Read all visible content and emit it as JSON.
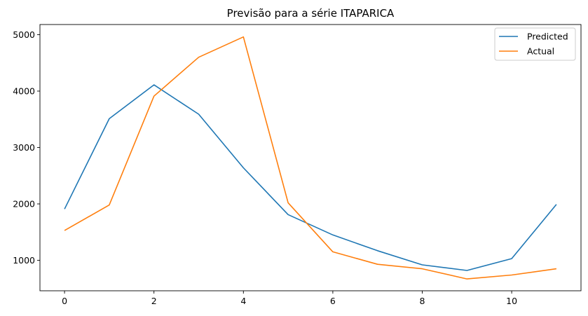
{
  "chart_data": {
    "type": "line",
    "title": "Previsão para a série ITAPARICA",
    "xlabel": "",
    "ylabel": "",
    "x": [
      0,
      1,
      2,
      3,
      4,
      5,
      6,
      7,
      8,
      9,
      10,
      11
    ],
    "xlim": [
      -0.55,
      11.55
    ],
    "ylim": [
      460,
      5180
    ],
    "x_ticks": [
      0,
      2,
      4,
      6,
      8,
      10
    ],
    "y_ticks": [
      1000,
      2000,
      3000,
      4000,
      5000
    ],
    "grid": false,
    "legend_position": "top-right",
    "series": [
      {
        "name": "Predicted",
        "color": "#1f77b4",
        "values": [
          1910,
          3510,
          4110,
          3590,
          2640,
          1810,
          1450,
          1170,
          920,
          820,
          1030,
          1990
        ]
      },
      {
        "name": "Actual",
        "color": "#ff7f0e",
        "values": [
          1530,
          1980,
          3910,
          4600,
          4960,
          2020,
          1150,
          930,
          850,
          670,
          740,
          850
        ]
      }
    ]
  }
}
